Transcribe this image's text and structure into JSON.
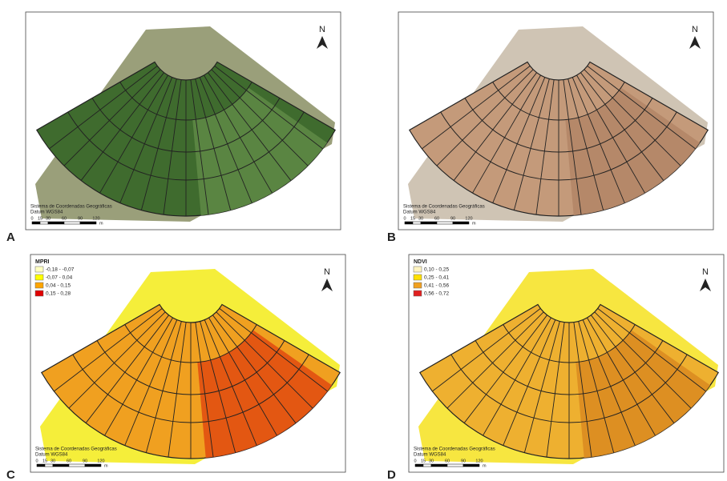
{
  "panels": [
    {
      "letter": "A",
      "north": "N",
      "footer": {
        "line1": "Sistema de Coordenadas Geográficas",
        "line2": "Datum WGS84"
      },
      "scale": {
        "ticks": [
          "0",
          "15",
          "30",
          "60",
          "90",
          "120"
        ],
        "unit": "m"
      }
    },
    {
      "letter": "B",
      "north": "N",
      "footer": {
        "line1": "Sistema de Coordenadas Geográficas",
        "line2": "Datum WGS84"
      },
      "scale": {
        "ticks": [
          "0",
          "15",
          "30",
          "60",
          "90",
          "120"
        ],
        "unit": "m"
      }
    },
    {
      "letter": "C",
      "north": "N",
      "footer": {
        "line1": "Sistema de Coordenadas Geográficas",
        "line2": "Datum WGS84"
      },
      "scale": {
        "ticks": [
          "0",
          "15",
          "30",
          "60",
          "90",
          "120"
        ],
        "unit": "m"
      },
      "legend": {
        "title": "MPRI",
        "items": [
          {
            "label": "-0,18 - -0,07",
            "color": "#ffffc0"
          },
          {
            "label": "-0,07 - 0,04",
            "color": "#ffff00"
          },
          {
            "label": "0,04 - 0,15",
            "color": "#ffa500"
          },
          {
            "label": "0,15 - 0,28",
            "color": "#e00000"
          }
        ]
      }
    },
    {
      "letter": "D",
      "north": "N",
      "footer": {
        "line1": "Sistema de Coordenadas Geográficas",
        "line2": "Datum WGS84"
      },
      "scale": {
        "ticks": [
          "0",
          "15",
          "30",
          "60",
          "90",
          "120"
        ],
        "unit": "m"
      },
      "legend": {
        "title": "NDVI",
        "items": [
          {
            "label": "0,10 - 0,25",
            "color": "#fff4c0"
          },
          {
            "label": "0,25 - 0,41",
            "color": "#ffe000"
          },
          {
            "label": "0,41 - 0,56",
            "color": "#f0a020"
          },
          {
            "label": "0,56 - 0,72",
            "color": "#e02020"
          }
        ]
      }
    }
  ]
}
